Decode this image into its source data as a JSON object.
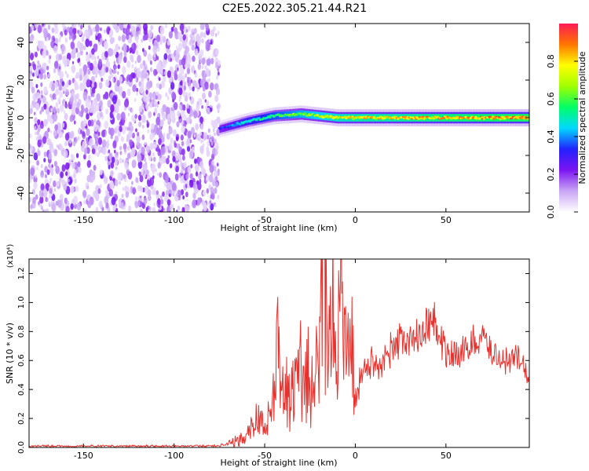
{
  "title": "C2E5.2022.305.21.44.R21",
  "chart_data": [
    {
      "type": "heatmap",
      "xlabel": "Height of straight line (km)",
      "ylabel": "Frequency (Hz)",
      "xlim": [
        -180,
        96
      ],
      "ylim": [
        -50,
        50
      ],
      "xticks": [
        -150,
        -100,
        -50,
        0,
        50
      ],
      "yticks": [
        -40,
        -20,
        0,
        20,
        40
      ],
      "colorbar": {
        "label": "Normalized spectral amplitude",
        "range": [
          0.0,
          1.0
        ],
        "ticks": [
          "0.0",
          "0.2",
          "0.4",
          "0.6",
          "0.8"
        ],
        "colors": [
          "#ffffff",
          "#c9a6f5",
          "#7c14f0",
          "#2222ff",
          "#00d8ff",
          "#00ff66",
          "#a0ff00",
          "#ffff00",
          "#ff7700",
          "#ff1a55"
        ]
      },
      "noise_region": {
        "x": [
          -180,
          -75
        ],
        "y": [
          -50,
          50
        ],
        "amplitude": [
          0.05,
          0.25
        ]
      },
      "signal_band": [
        {
          "x": -75,
          "y": -6,
          "amplitude": 0.35
        },
        {
          "x": -60,
          "y": -2,
          "amplitude": 0.5
        },
        {
          "x": -45,
          "y": 1,
          "amplitude": 0.6
        },
        {
          "x": -30,
          "y": 2,
          "amplitude": 0.7
        },
        {
          "x": -20,
          "y": 1,
          "amplitude": 0.75
        },
        {
          "x": -10,
          "y": 0,
          "amplitude": 0.8
        },
        {
          "x": 0,
          "y": 0,
          "amplitude": 0.85
        },
        {
          "x": 20,
          "y": 0,
          "amplitude": 0.85
        },
        {
          "x": 50,
          "y": 0,
          "amplitude": 0.9
        },
        {
          "x": 96,
          "y": 0,
          "amplitude": 0.95
        }
      ]
    },
    {
      "type": "line",
      "xlabel": "Height of straight line (km)",
      "ylabel": "SNR (10 * v/v)",
      "multiplier": "(x10⁴)",
      "xlim": [
        -180,
        96
      ],
      "ylim": [
        0,
        1.3
      ],
      "xticks": [
        -150,
        -100,
        -50,
        0,
        50
      ],
      "yticks": [
        "0.0",
        "0.2",
        "0.4",
        "0.6",
        "0.8",
        "1.0",
        "1.2"
      ],
      "color": "#e8302c",
      "series": [
        {
          "x": [
            -180,
            -150,
            -120,
            -100,
            -80,
            -70,
            -60,
            -55,
            -50,
            -45,
            -43,
            -40,
            -35,
            -30,
            -25,
            -20,
            -17,
            -15,
            -12,
            -10,
            -8,
            -5,
            -2,
            0,
            5,
            10,
            15,
            20,
            25,
            30,
            35,
            40,
            43,
            45,
            50,
            55,
            60,
            65,
            70,
            75,
            80,
            85,
            90,
            96
          ],
          "y": [
            0.01,
            0.01,
            0.01,
            0.01,
            0.01,
            0.02,
            0.08,
            0.2,
            0.15,
            0.3,
            0.65,
            0.35,
            0.4,
            0.5,
            0.45,
            0.55,
            1.3,
            0.6,
            0.9,
            0.6,
            1.05,
            0.8,
            0.7,
            0.35,
            0.55,
            0.6,
            0.6,
            0.65,
            0.75,
            0.72,
            0.78,
            0.85,
            0.9,
            0.82,
            0.65,
            0.62,
            0.68,
            0.72,
            0.76,
            0.66,
            0.62,
            0.6,
            0.62,
            0.48
          ]
        }
      ]
    }
  ]
}
